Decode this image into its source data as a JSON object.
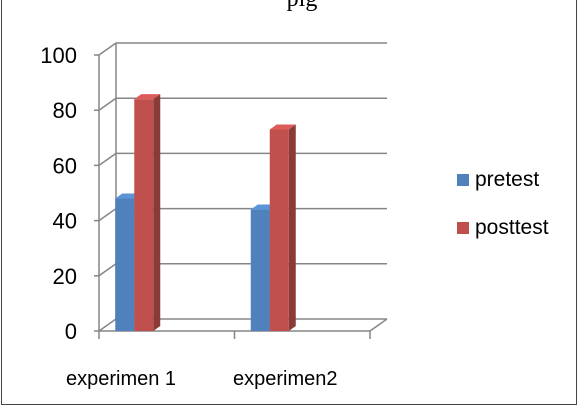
{
  "chart_data": {
    "type": "bar",
    "title": "",
    "title_fragment": "pig",
    "categories": [
      "experimen 1",
      "experimen2"
    ],
    "series": [
      {
        "name": "pretest",
        "values": [
          48,
          44
        ],
        "color": "#4F81BD"
      },
      {
        "name": "posttest",
        "values": [
          84,
          73
        ],
        "color": "#C0504D"
      }
    ],
    "ylim": [
      0,
      100
    ],
    "yticks": [
      0,
      20,
      40,
      60,
      80,
      100
    ],
    "xlabel": "",
    "ylabel": "",
    "grid": true,
    "legend_position": "right",
    "style": "3d-column"
  }
}
